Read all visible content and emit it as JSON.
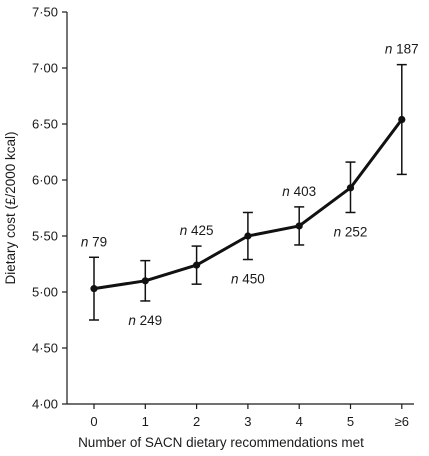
{
  "chart_data": {
    "type": "line",
    "title": "",
    "xlabel": "Number of SACN dietary recommendations met",
    "ylabel": "Dietary cost (£/2000 kcal)",
    "ylim": [
      4.0,
      7.5
    ],
    "grid": false,
    "categories": [
      "0",
      "1",
      "2",
      "3",
      "4",
      "5",
      "≥6"
    ],
    "y_ticks": [
      {
        "value": 4.0,
        "label": "4·00"
      },
      {
        "value": 4.5,
        "label": "4·50"
      },
      {
        "value": 5.0,
        "label": "5·00"
      },
      {
        "value": 5.5,
        "label": "5·50"
      },
      {
        "value": 6.0,
        "label": "6·00"
      },
      {
        "value": 6.5,
        "label": "6·50"
      },
      {
        "value": 7.0,
        "label": "7·00"
      },
      {
        "value": 7.5,
        "label": "7·50"
      }
    ],
    "series": [
      {
        "values": [
          5.03,
          5.1,
          5.24,
          5.5,
          5.59,
          5.93,
          6.54
        ],
        "error_low": [
          4.75,
          4.92,
          5.07,
          5.29,
          5.42,
          5.71,
          6.05
        ],
        "error_high": [
          5.31,
          5.28,
          5.41,
          5.71,
          5.76,
          6.16,
          7.03
        ]
      }
    ],
    "annotations": [
      {
        "prefix": "n",
        "count": "79",
        "category": "0",
        "placement": "above"
      },
      {
        "prefix": "n",
        "count": "249",
        "category": "1",
        "placement": "below"
      },
      {
        "prefix": "n",
        "count": "425",
        "category": "2",
        "placement": "above"
      },
      {
        "prefix": "n",
        "count": "450",
        "category": "3",
        "placement": "below"
      },
      {
        "prefix": "n",
        "count": "403",
        "category": "4",
        "placement": "above"
      },
      {
        "prefix": "n",
        "count": "252",
        "category": "5",
        "placement": "below"
      },
      {
        "prefix": "n",
        "count": "187",
        "category": "≥6",
        "placement": "above"
      }
    ]
  }
}
